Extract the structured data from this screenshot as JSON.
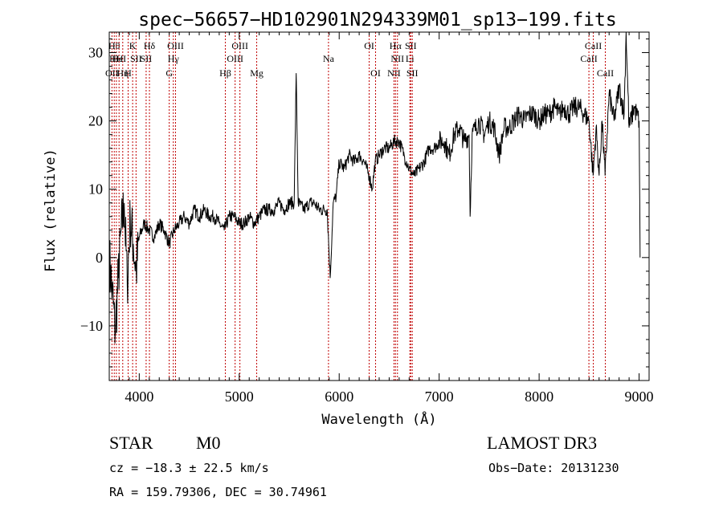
{
  "title": "spec−56657−HD102901N294339M01_sp13−199.fits",
  "chart_data": {
    "type": "line",
    "xlabel": "Wavelength (Å)",
    "ylabel": "Flux (relative)",
    "xlim": [
      3700,
      9100
    ],
    "ylim": [
      -18,
      33
    ],
    "xticks": [
      4000,
      5000,
      6000,
      7000,
      8000,
      9000
    ],
    "yticks": [
      -10,
      0,
      10,
      20,
      30
    ],
    "series": [
      {
        "points": [
          [
            3700,
            0
          ],
          [
            3730,
            -5
          ],
          [
            3760,
            -11
          ],
          [
            3790,
            -3
          ],
          [
            3820,
            4
          ],
          [
            3850,
            8
          ],
          [
            3880,
            -4
          ],
          [
            3910,
            6
          ],
          [
            3940,
            2
          ],
          [
            3970,
            -2
          ],
          [
            4000,
            3
          ],
          [
            4050,
            5
          ],
          [
            4100,
            4
          ],
          [
            4150,
            3
          ],
          [
            4200,
            5
          ],
          [
            4250,
            4
          ],
          [
            4300,
            2
          ],
          [
            4350,
            4
          ],
          [
            4400,
            5
          ],
          [
            4450,
            6
          ],
          [
            4500,
            5
          ],
          [
            4550,
            7
          ],
          [
            4600,
            6
          ],
          [
            4650,
            7
          ],
          [
            4700,
            6
          ],
          [
            4750,
            6
          ],
          [
            4800,
            5
          ],
          [
            4850,
            4
          ],
          [
            4900,
            6
          ],
          [
            4950,
            6
          ],
          [
            5000,
            5
          ],
          [
            5050,
            5
          ],
          [
            5100,
            6
          ],
          [
            5150,
            5
          ],
          [
            5200,
            6
          ],
          [
            5250,
            7
          ],
          [
            5300,
            7
          ],
          [
            5350,
            7
          ],
          [
            5400,
            8
          ],
          [
            5450,
            7
          ],
          [
            5500,
            8
          ],
          [
            5550,
            8
          ],
          [
            5570,
            27
          ],
          [
            5590,
            8
          ],
          [
            5650,
            7
          ],
          [
            5700,
            8
          ],
          [
            5750,
            8
          ],
          [
            5800,
            7
          ],
          [
            5850,
            7
          ],
          [
            5880,
            7
          ],
          [
            5910,
            -3
          ],
          [
            5940,
            8
          ],
          [
            5970,
            9
          ],
          [
            6000,
            14
          ],
          [
            6050,
            13
          ],
          [
            6100,
            15
          ],
          [
            6150,
            14
          ],
          [
            6200,
            15
          ],
          [
            6250,
            14
          ],
          [
            6300,
            12
          ],
          [
            6330,
            10
          ],
          [
            6360,
            14
          ],
          [
            6400,
            15
          ],
          [
            6450,
            16
          ],
          [
            6500,
            16
          ],
          [
            6550,
            17
          ],
          [
            6600,
            17
          ],
          [
            6650,
            15
          ],
          [
            6700,
            13
          ],
          [
            6750,
            12
          ],
          [
            6800,
            13
          ],
          [
            6850,
            14
          ],
          [
            6900,
            16
          ],
          [
            6950,
            16
          ],
          [
            7000,
            17
          ],
          [
            7050,
            17
          ],
          [
            7100,
            15
          ],
          [
            7150,
            18
          ],
          [
            7200,
            19
          ],
          [
            7250,
            17
          ],
          [
            7300,
            18
          ],
          [
            7310,
            6
          ],
          [
            7330,
            18
          ],
          [
            7400,
            20
          ],
          [
            7450,
            18
          ],
          [
            7500,
            20
          ],
          [
            7550,
            19
          ],
          [
            7600,
            15
          ],
          [
            7650,
            19
          ],
          [
            7700,
            19
          ],
          [
            7750,
            20
          ],
          [
            7800,
            21
          ],
          [
            7850,
            20
          ],
          [
            7900,
            21
          ],
          [
            7950,
            21
          ],
          [
            8000,
            20
          ],
          [
            8050,
            21
          ],
          [
            8100,
            21
          ],
          [
            8150,
            22
          ],
          [
            8200,
            21
          ],
          [
            8250,
            22
          ],
          [
            8300,
            21
          ],
          [
            8350,
            22
          ],
          [
            8400,
            22
          ],
          [
            8450,
            21
          ],
          [
            8500,
            20
          ],
          [
            8540,
            12
          ],
          [
            8570,
            19
          ],
          [
            8600,
            12
          ],
          [
            8630,
            20
          ],
          [
            8660,
            12
          ],
          [
            8700,
            24
          ],
          [
            8750,
            20
          ],
          [
            8800,
            25
          ],
          [
            8850,
            21
          ],
          [
            8870,
            33
          ],
          [
            8900,
            19
          ],
          [
            8950,
            22
          ],
          [
            9000,
            20
          ],
          [
            9010,
            0
          ]
        ]
      }
    ],
    "lines": [
      {
        "x": 3750,
        "label": "Hθ",
        "row": 0
      },
      {
        "x": 3771,
        "label": "HH",
        "row": 1
      },
      {
        "x": 3727,
        "label": "OII",
        "row": 2
      },
      {
        "x": 3798,
        "label": "HeI",
        "row": 1
      },
      {
        "x": 3835,
        "label": "Hη",
        "row": 2
      },
      {
        "x": 3889,
        "label": "H",
        "row": 2
      },
      {
        "x": 3934,
        "label": "K",
        "row": 0
      },
      {
        "x": 3968,
        "label": "SII",
        "row": 1
      },
      {
        "x": 4069,
        "label": "SII",
        "row": 1
      },
      {
        "x": 4102,
        "label": "Hδ",
        "row": 0
      },
      {
        "x": 4300,
        "label": "G",
        "row": 2
      },
      {
        "x": 4341,
        "label": "Hγ",
        "row": 1
      },
      {
        "x": 4363,
        "label": "OIII",
        "row": 0
      },
      {
        "x": 4861,
        "label": "Hβ",
        "row": 2
      },
      {
        "x": 4959,
        "label": "OIII",
        "row": 1
      },
      {
        "x": 5007,
        "label": "OIII",
        "row": 0
      },
      {
        "x": 5175,
        "label": "Mg",
        "row": 2
      },
      {
        "x": 5893,
        "label": "Na",
        "row": 1
      },
      {
        "x": 6300,
        "label": "OI",
        "row": 0
      },
      {
        "x": 6364,
        "label": "OI",
        "row": 2
      },
      {
        "x": 6548,
        "label": "NII",
        "row": 2
      },
      {
        "x": 6563,
        "label": "Hα",
        "row": 0
      },
      {
        "x": 6583,
        "label": "NII",
        "row": 1
      },
      {
        "x": 6707,
        "label": "Li",
        "row": 1
      },
      {
        "x": 6716,
        "label": "SII",
        "row": 0
      },
      {
        "x": 6731,
        "label": "SII",
        "row": 2
      },
      {
        "x": 8498,
        "label": "CaII",
        "row": 1
      },
      {
        "x": 8542,
        "label": "CaII",
        "row": 0
      },
      {
        "x": 8662,
        "label": "CaII",
        "row": 2
      }
    ]
  },
  "info": {
    "class_label": "STAR",
    "subclass": "M0",
    "survey": "LAMOST DR3",
    "cz": "cz = −18.3 ± 22.5 km/s",
    "obs_date": "Obs−Date: 20131230",
    "coords": "RA = 159.79306, DEC =  30.74961"
  }
}
